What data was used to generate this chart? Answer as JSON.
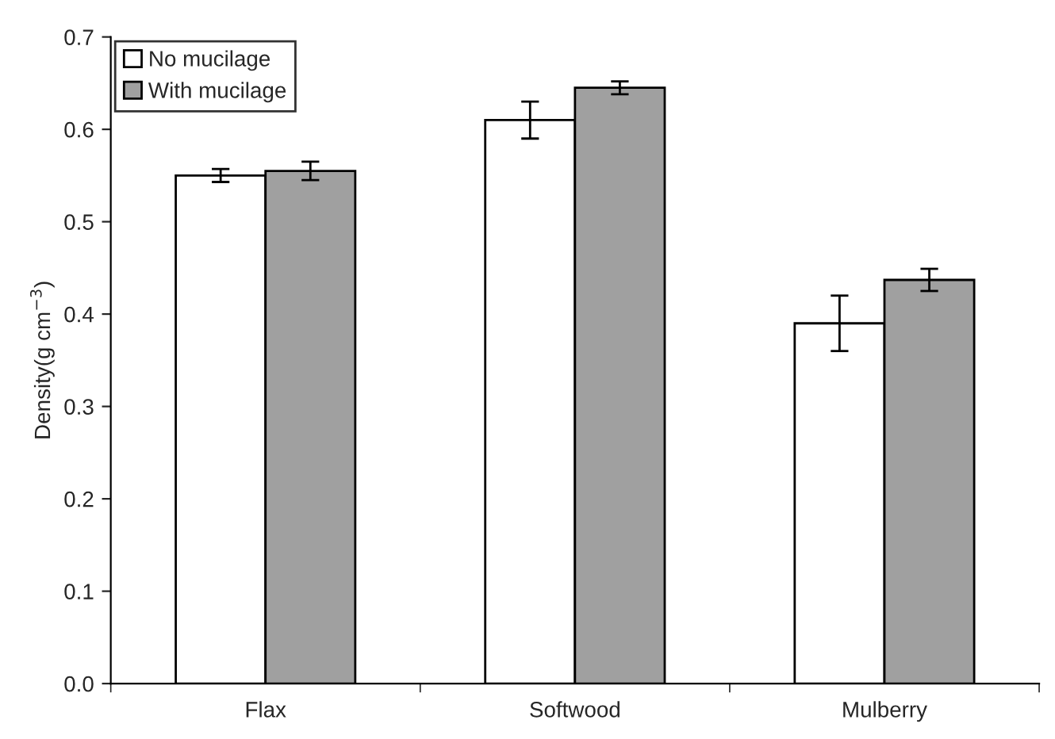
{
  "chart_data": {
    "type": "bar",
    "ylabel": "Density(g cm$^{−3}$)",
    "categories": [
      "Flax",
      "Softwood",
      "Mulberry"
    ],
    "series": [
      {
        "name": "No mucilage",
        "color": "#ffffff",
        "values": [
          0.55,
          0.61,
          0.39
        ],
        "errors": [
          0.007,
          0.02,
          0.03
        ]
      },
      {
        "name": "With mucilage",
        "color": "#a0a0a0",
        "values": [
          0.555,
          0.645,
          0.437
        ],
        "errors": [
          0.01,
          0.007,
          0.012
        ]
      }
    ],
    "ylim": [
      0,
      0.7
    ],
    "yticks": [
      "0.0",
      0.1,
      0.2,
      0.3,
      0.4,
      0.5,
      0.6,
      0.7
    ],
    "grid": false,
    "legend": "top left"
  }
}
